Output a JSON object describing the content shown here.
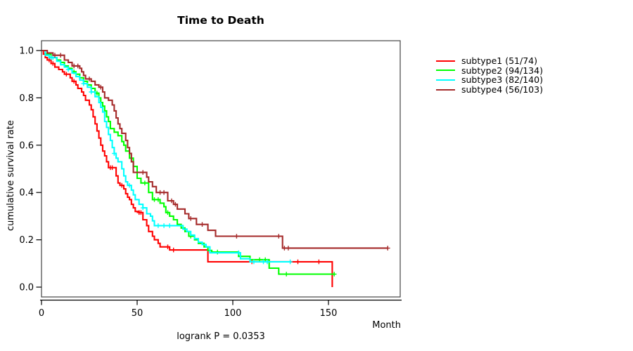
{
  "chart_data": {
    "type": "line",
    "subtype": "kaplan-meier-step-curves",
    "title": "Time to Death",
    "xlabel": "Month",
    "ylabel": "cumulative survival rate",
    "annotation": "logrank P = 0.0353",
    "xlim": [
      0,
      187
    ],
    "ylim": [
      0.0,
      1.0
    ],
    "xticks": [
      0,
      50,
      100,
      150
    ],
    "yticks": [
      0.0,
      0.2,
      0.4,
      0.6,
      0.8,
      1.0
    ],
    "grid": false,
    "legend_position": "right-outside",
    "axis_color": "#000000",
    "box_color": "#444444",
    "series": [
      {
        "name": "subtype1",
        "label": "subtype1 (51/74)",
        "events": 51,
        "n": 74,
        "color": "#ff0000",
        "steps": [
          [
            0,
            1.0
          ],
          [
            1,
            0.985
          ],
          [
            2,
            0.97
          ],
          [
            3,
            0.96
          ],
          [
            5,
            0.945
          ],
          [
            7,
            0.93
          ],
          [
            9,
            0.92
          ],
          [
            11,
            0.91
          ],
          [
            12,
            0.9
          ],
          [
            15,
            0.885
          ],
          [
            16,
            0.87
          ],
          [
            18,
            0.855
          ],
          [
            19,
            0.84
          ],
          [
            21,
            0.825
          ],
          [
            22,
            0.81
          ],
          [
            23,
            0.79
          ],
          [
            25,
            0.77
          ],
          [
            26,
            0.75
          ],
          [
            27,
            0.72
          ],
          [
            28,
            0.69
          ],
          [
            29,
            0.66
          ],
          [
            30,
            0.63
          ],
          [
            31,
            0.6
          ],
          [
            32,
            0.575
          ],
          [
            33,
            0.555
          ],
          [
            34,
            0.53
          ],
          [
            35,
            0.505
          ],
          [
            39,
            0.47
          ],
          [
            40,
            0.44
          ],
          [
            41,
            0.43
          ],
          [
            43,
            0.415
          ],
          [
            44,
            0.395
          ],
          [
            45,
            0.38
          ],
          [
            46,
            0.37
          ],
          [
            47,
            0.35
          ],
          [
            48,
            0.335
          ],
          [
            49,
            0.32
          ],
          [
            51,
            0.315
          ],
          [
            53,
            0.285
          ],
          [
            55,
            0.26
          ],
          [
            56,
            0.235
          ],
          [
            58,
            0.215
          ],
          [
            59,
            0.2
          ],
          [
            61,
            0.185
          ],
          [
            62,
            0.17
          ],
          [
            67,
            0.157
          ],
          [
            87,
            0.107
          ],
          [
            152,
            0.0
          ]
        ],
        "censors": [
          [
            4,
            0.96
          ],
          [
            6,
            0.945
          ],
          [
            13,
            0.9
          ],
          [
            17,
            0.87
          ],
          [
            36,
            0.505
          ],
          [
            37,
            0.505
          ],
          [
            42,
            0.43
          ],
          [
            51,
            0.315
          ],
          [
            52,
            0.315
          ],
          [
            66,
            0.17
          ],
          [
            69,
            0.157
          ],
          [
            110,
            0.107
          ],
          [
            134,
            0.107
          ],
          [
            145,
            0.107
          ]
        ]
      },
      {
        "name": "subtype2",
        "label": "subtype2 (94/134)",
        "events": 94,
        "n": 134,
        "color": "#00ff00",
        "steps": [
          [
            0,
            1.0
          ],
          [
            2,
            0.985
          ],
          [
            5,
            0.97
          ],
          [
            8,
            0.96
          ],
          [
            10,
            0.95
          ],
          [
            12,
            0.935
          ],
          [
            14,
            0.925
          ],
          [
            16,
            0.91
          ],
          [
            18,
            0.9
          ],
          [
            20,
            0.885
          ],
          [
            22,
            0.87
          ],
          [
            24,
            0.855
          ],
          [
            26,
            0.84
          ],
          [
            28,
            0.82
          ],
          [
            30,
            0.8
          ],
          [
            31,
            0.78
          ],
          [
            32,
            0.765
          ],
          [
            33,
            0.745
          ],
          [
            34,
            0.72
          ],
          [
            35,
            0.7
          ],
          [
            36,
            0.67
          ],
          [
            38,
            0.655
          ],
          [
            40,
            0.64
          ],
          [
            42,
            0.615
          ],
          [
            43,
            0.6
          ],
          [
            44,
            0.575
          ],
          [
            46,
            0.545
          ],
          [
            48,
            0.51
          ],
          [
            50,
            0.46
          ],
          [
            52,
            0.44
          ],
          [
            56,
            0.4
          ],
          [
            58,
            0.37
          ],
          [
            62,
            0.355
          ],
          [
            64,
            0.34
          ],
          [
            65,
            0.315
          ],
          [
            67,
            0.3
          ],
          [
            69,
            0.285
          ],
          [
            71,
            0.265
          ],
          [
            73,
            0.25
          ],
          [
            75,
            0.235
          ],
          [
            77,
            0.215
          ],
          [
            80,
            0.2
          ],
          [
            82,
            0.185
          ],
          [
            85,
            0.17
          ],
          [
            87,
            0.155
          ],
          [
            89,
            0.148
          ],
          [
            103,
            0.13
          ],
          [
            109,
            0.116
          ],
          [
            119,
            0.08
          ],
          [
            124,
            0.055
          ],
          [
            153,
            0.055
          ]
        ],
        "censors": [
          [
            17,
            0.91
          ],
          [
            29,
            0.82
          ],
          [
            54,
            0.44
          ],
          [
            59,
            0.37
          ],
          [
            61,
            0.37
          ],
          [
            66,
            0.315
          ],
          [
            78,
            0.215
          ],
          [
            92,
            0.148
          ],
          [
            114,
            0.116
          ],
          [
            117,
            0.116
          ],
          [
            128,
            0.055
          ],
          [
            153,
            0.055
          ]
        ]
      },
      {
        "name": "subtype3",
        "label": "subtype3 (82/140)",
        "events": 82,
        "n": 140,
        "color": "#00ffff",
        "steps": [
          [
            0,
            1.0
          ],
          [
            2,
            0.98
          ],
          [
            4,
            0.97
          ],
          [
            8,
            0.955
          ],
          [
            10,
            0.94
          ],
          [
            12,
            0.93
          ],
          [
            14,
            0.92
          ],
          [
            16,
            0.905
          ],
          [
            18,
            0.89
          ],
          [
            20,
            0.875
          ],
          [
            22,
            0.86
          ],
          [
            24,
            0.845
          ],
          [
            26,
            0.825
          ],
          [
            28,
            0.805
          ],
          [
            30,
            0.78
          ],
          [
            31,
            0.76
          ],
          [
            32,
            0.74
          ],
          [
            33,
            0.7
          ],
          [
            34,
            0.675
          ],
          [
            35,
            0.645
          ],
          [
            36,
            0.62
          ],
          [
            37,
            0.59
          ],
          [
            38,
            0.565
          ],
          [
            39,
            0.545
          ],
          [
            40,
            0.53
          ],
          [
            42,
            0.5
          ],
          [
            43,
            0.47
          ],
          [
            44,
            0.445
          ],
          [
            45,
            0.43
          ],
          [
            47,
            0.41
          ],
          [
            48,
            0.39
          ],
          [
            49,
            0.37
          ],
          [
            51,
            0.35
          ],
          [
            53,
            0.335
          ],
          [
            55,
            0.31
          ],
          [
            57,
            0.3
          ],
          [
            58,
            0.28
          ],
          [
            59,
            0.26
          ],
          [
            74,
            0.245
          ],
          [
            76,
            0.235
          ],
          [
            78,
            0.22
          ],
          [
            80,
            0.205
          ],
          [
            82,
            0.19
          ],
          [
            84,
            0.18
          ],
          [
            86,
            0.17
          ],
          [
            88,
            0.145
          ],
          [
            104,
            0.12
          ],
          [
            109,
            0.107
          ],
          [
            130,
            0.107
          ]
        ],
        "censors": [
          [
            5,
            0.97
          ],
          [
            6,
            0.97
          ],
          [
            14,
            0.92
          ],
          [
            22,
            0.86
          ],
          [
            26,
            0.825
          ],
          [
            38,
            0.565
          ],
          [
            46,
            0.43
          ],
          [
            53,
            0.335
          ],
          [
            61,
            0.26
          ],
          [
            64,
            0.26
          ],
          [
            67,
            0.26
          ],
          [
            103,
            0.145
          ],
          [
            111,
            0.107
          ],
          [
            116,
            0.107
          ],
          [
            118,
            0.107
          ],
          [
            130,
            0.107
          ]
        ]
      },
      {
        "name": "subtype4",
        "label": "subtype4 (56/103)",
        "events": 56,
        "n": 103,
        "color": "#a52a2a",
        "steps": [
          [
            0,
            1.0
          ],
          [
            3,
            0.99
          ],
          [
            6,
            0.98
          ],
          [
            12,
            0.96
          ],
          [
            14,
            0.95
          ],
          [
            16,
            0.935
          ],
          [
            20,
            0.925
          ],
          [
            21,
            0.91
          ],
          [
            22,
            0.895
          ],
          [
            23,
            0.88
          ],
          [
            26,
            0.87
          ],
          [
            28,
            0.855
          ],
          [
            30,
            0.845
          ],
          [
            32,
            0.825
          ],
          [
            33,
            0.8
          ],
          [
            35,
            0.79
          ],
          [
            37,
            0.77
          ],
          [
            38,
            0.745
          ],
          [
            39,
            0.715
          ],
          [
            40,
            0.69
          ],
          [
            41,
            0.67
          ],
          [
            42,
            0.65
          ],
          [
            44,
            0.62
          ],
          [
            45,
            0.59
          ],
          [
            46,
            0.565
          ],
          [
            47,
            0.53
          ],
          [
            48,
            0.485
          ],
          [
            55,
            0.465
          ],
          [
            56,
            0.445
          ],
          [
            58,
            0.425
          ],
          [
            60,
            0.4
          ],
          [
            66,
            0.365
          ],
          [
            69,
            0.35
          ],
          [
            71,
            0.33
          ],
          [
            75,
            0.31
          ],
          [
            77,
            0.29
          ],
          [
            81,
            0.265
          ],
          [
            87,
            0.24
          ],
          [
            91,
            0.215
          ],
          [
            126,
            0.165
          ],
          [
            181,
            0.165
          ]
        ],
        "censors": [
          [
            7,
            0.98
          ],
          [
            10,
            0.98
          ],
          [
            17,
            0.935
          ],
          [
            19,
            0.935
          ],
          [
            25,
            0.88
          ],
          [
            31,
            0.845
          ],
          [
            53,
            0.485
          ],
          [
            62,
            0.4
          ],
          [
            64,
            0.4
          ],
          [
            68,
            0.365
          ],
          [
            70,
            0.35
          ],
          [
            78,
            0.29
          ],
          [
            84,
            0.265
          ],
          [
            102,
            0.215
          ],
          [
            124,
            0.215
          ],
          [
            127,
            0.165
          ],
          [
            129,
            0.165
          ],
          [
            181,
            0.165
          ]
        ]
      }
    ]
  }
}
